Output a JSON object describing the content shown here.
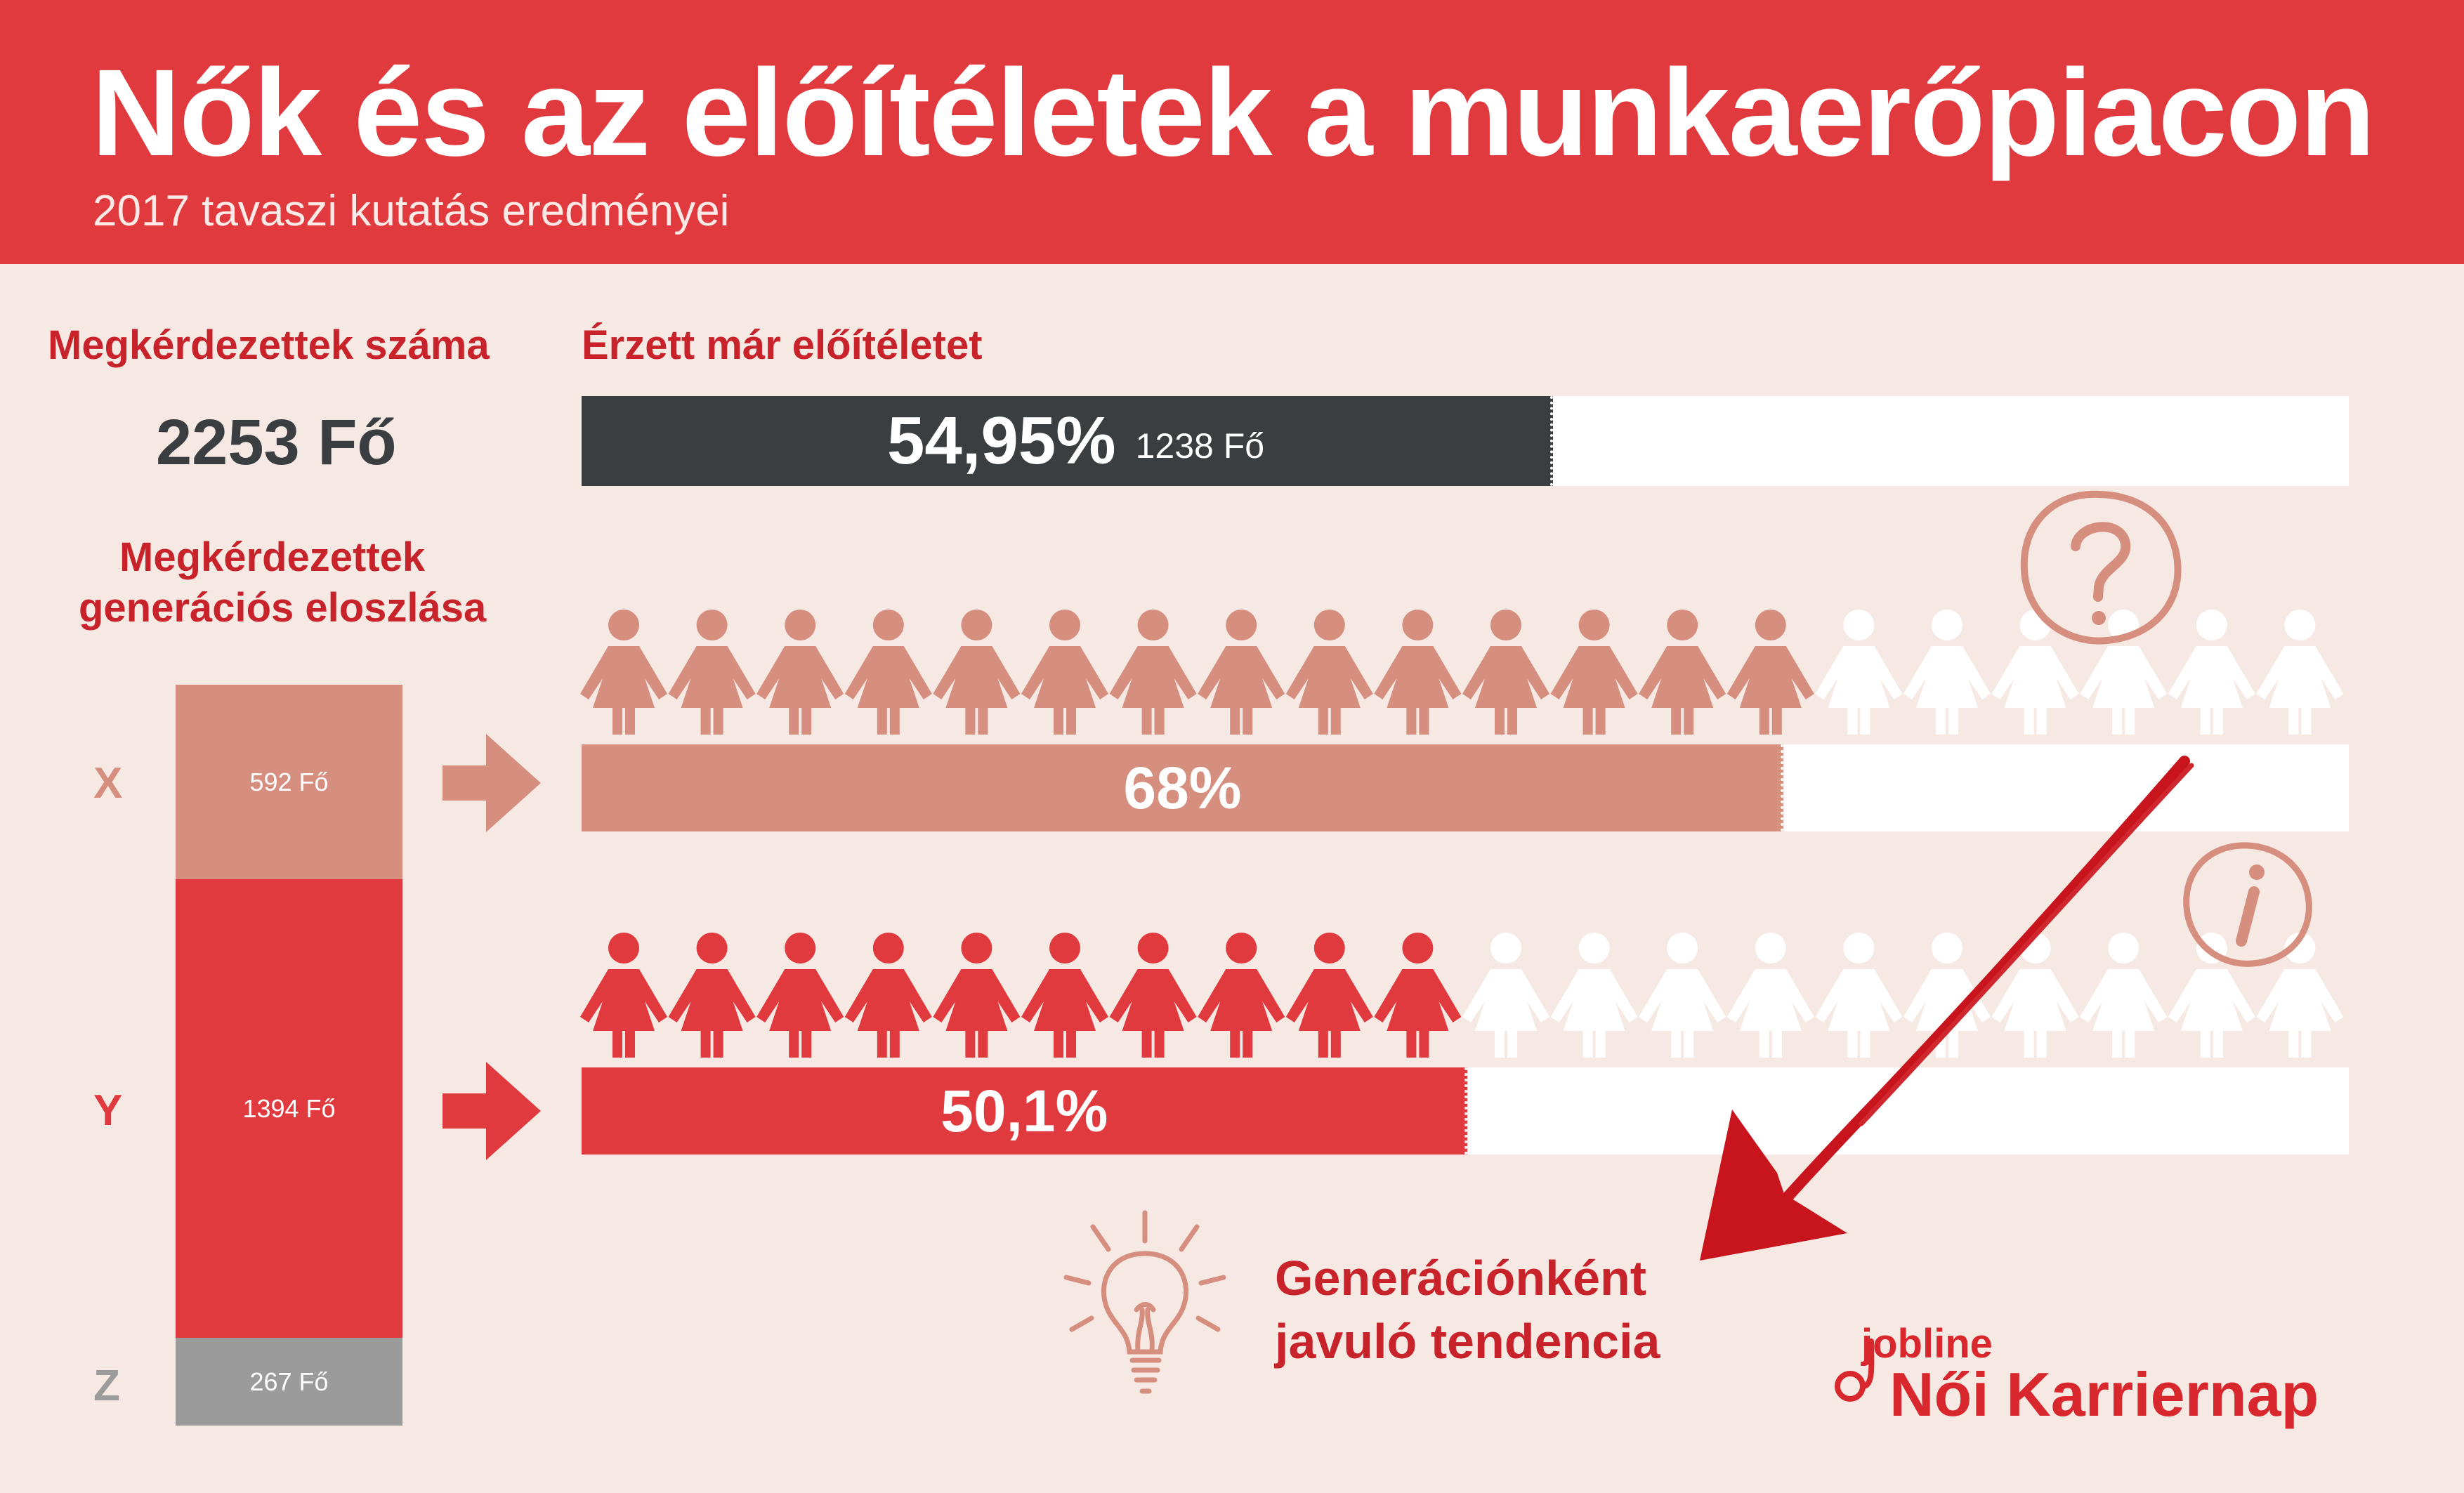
{
  "header": {
    "title": "Nők és az előítéletek a munkaerőpiacon",
    "subtitle": "2017 tavaszi kutatás eredményei"
  },
  "respondents": {
    "label": "Megkérdezettek száma",
    "value": "2253 Fő"
  },
  "prejudice": {
    "label": "Érzett már előítéletet",
    "percent_label": "54,95%",
    "count_label": "1238 Fő"
  },
  "distribution": {
    "label_line1": "Megkérdezettek",
    "label_line2": "generációs eloszlása"
  },
  "conclusion": {
    "line1": "Generációnként",
    "line2": "javuló tendencia"
  },
  "logo": {
    "small": "jobline",
    "big": "Női Karriernap"
  },
  "colors": {
    "header": "#e13a3e",
    "background": "#f6e8e3",
    "dark": "#3a3e41",
    "gen_x": "#d68e7e",
    "gen_y": "#e13a3e",
    "gen_z": "#9b9b9b",
    "accent_text": "#c8232b"
  },
  "icons": [
    "question-mark-icon",
    "info-icon",
    "lightbulb-icon",
    "woman-figure-icon",
    "right-arrow-icon",
    "trend-down-arrow-icon"
  ],
  "chart_data": [
    {
      "type": "bar",
      "name": "prejudice",
      "values": [
        54.95
      ],
      "ylim": [
        0,
        100
      ]
    },
    {
      "type": "bar",
      "name": "generation_distribution",
      "categories": [
        "X",
        "Y",
        "Z"
      ],
      "values": [
        592,
        1394,
        267
      ],
      "value_labels": [
        "592 Fő",
        "1394 Fő",
        "267 Fő"
      ]
    },
    {
      "type": "bar",
      "name": "prejudice_by_generation",
      "categories": [
        "X",
        "Y"
      ],
      "values": [
        68,
        50.1
      ],
      "value_labels": [
        "68%",
        "50,1%"
      ],
      "ylim": [
        0,
        100
      ]
    }
  ],
  "figures": {
    "total_per_row": 20,
    "x_filled": 14,
    "y_filled": 10
  }
}
